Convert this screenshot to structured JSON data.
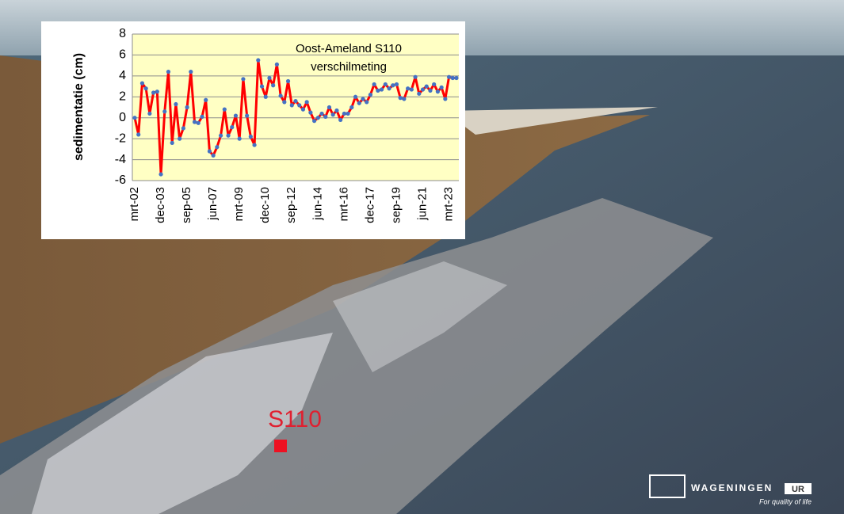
{
  "chart_data": {
    "type": "line",
    "title": "Oost-Ameland S110",
    "subtitle": "verschilmeting",
    "y_label": "sedimentatie (cm)",
    "categories": [
      "mrt-02",
      null,
      null,
      null,
      null,
      null,
      null,
      "dec-03",
      null,
      null,
      null,
      null,
      null,
      null,
      "sep-05",
      null,
      null,
      null,
      null,
      null,
      null,
      "jun-07",
      null,
      null,
      null,
      null,
      null,
      null,
      "mrt-09",
      null,
      null,
      null,
      null,
      null,
      null,
      "dec-10",
      null,
      null,
      null,
      null,
      null,
      null,
      "sep-12",
      null,
      null,
      null,
      null,
      null,
      null,
      "jun-14",
      null,
      null,
      null,
      null,
      null,
      null,
      "mrt-16",
      null,
      null,
      null,
      null,
      null,
      null,
      "dec-17",
      null,
      null,
      null,
      null,
      null,
      null,
      "sep-19",
      null,
      null,
      null,
      null,
      null,
      null,
      "jun-21",
      null,
      null,
      null,
      null,
      null,
      null,
      "mrt-23",
      null,
      null
    ],
    "series": [
      {
        "color": "#ff0000",
        "marker_color": "#4472c4",
        "values": [
          0,
          -1.6,
          3.3,
          2.8,
          0.4,
          2.4,
          2.5,
          -5.4,
          0.6,
          4.4,
          -2.4,
          1.3,
          -2,
          -1,
          1,
          4.4,
          -0.4,
          -0.5,
          0.1,
          1.7,
          -3.2,
          -3.6,
          -2.8,
          -1.7,
          0.8,
          -1.7,
          -0.9,
          0.2,
          -2,
          3.7,
          0.2,
          -1.8,
          -2.6,
          5.5,
          3,
          2,
          3.8,
          3.1,
          5.1,
          2.1,
          1.5,
          3.5,
          1.2,
          1.6,
          1.2,
          0.8,
          1.5,
          0.5,
          -0.3,
          0,
          0.4,
          0.1,
          1,
          0.3,
          0.7,
          -0.2,
          0.4,
          0.4,
          1,
          2,
          1.4,
          1.8,
          1.5,
          2.2,
          3.2,
          2.6,
          2.7,
          3.2,
          2.8,
          3.1,
          3.2,
          1.9,
          1.8,
          2.8,
          2.7,
          3.9,
          2.3,
          2.7,
          3,
          2.6,
          3.2,
          2.5,
          2.9,
          1.8,
          3.9,
          3.8,
          3.8
        ]
      }
    ],
    "ylim": [
      -6,
      8
    ],
    "yticks": [
      -6,
      -4,
      -2,
      0,
      2,
      4,
      6,
      8
    ],
    "grid": true,
    "background": "#ffffc4"
  },
  "photo_label": "S110",
  "logo": {
    "name": "WAGENINGEN",
    "suffix": "UR",
    "tagline": "For quality of life"
  }
}
